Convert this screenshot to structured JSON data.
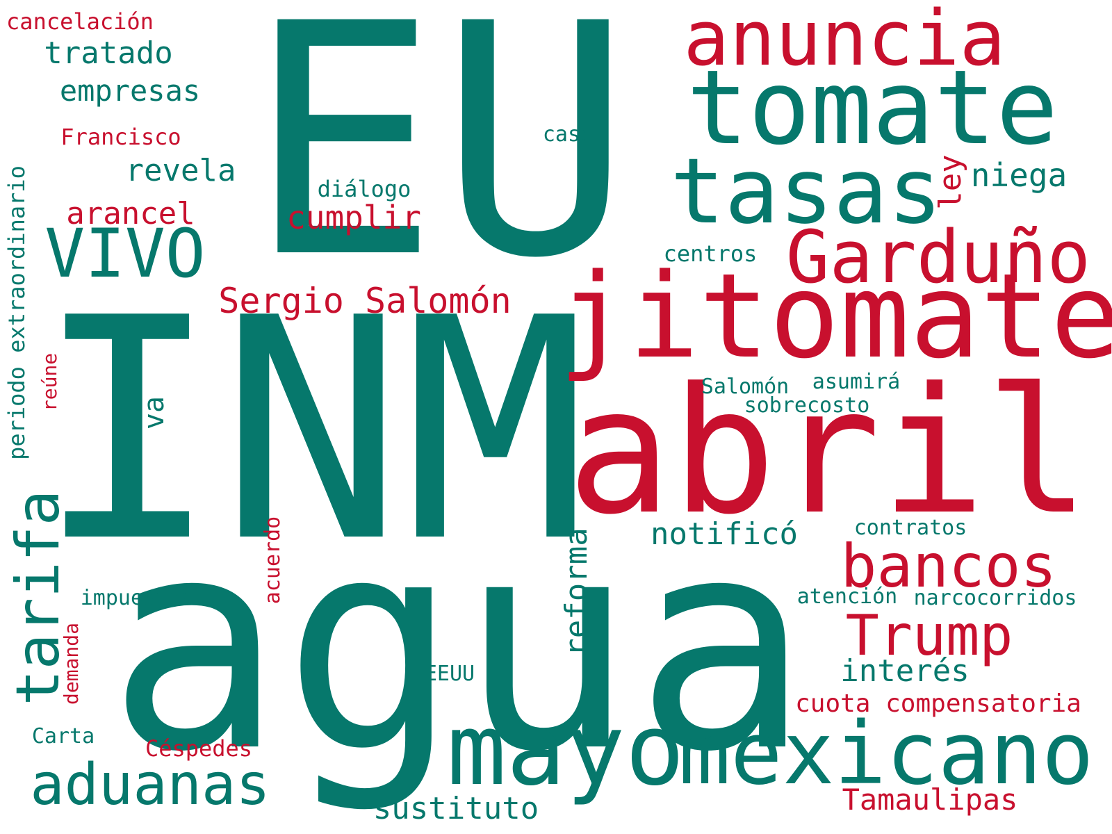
{
  "colors": {
    "green": "#06786c",
    "red": "#c8102e",
    "background": "#ffffff"
  },
  "words": {
    "eu": "EU",
    "inm": "INM",
    "agua": "agua",
    "abril": "abril",
    "jitomate": "jitomate",
    "tomate": "tomate",
    "anuncia": "anuncia",
    "tasas": "tasas",
    "garduno": "Garduño",
    "vivo": "VIVO",
    "mayo": "mayo",
    "mexicano": "mexicano",
    "aduanas": "aduanas",
    "tarifa": "tarifa",
    "bancos": "bancos",
    "trump": "Trump",
    "sergio_salomon": "Sergio Salomón",
    "cancelacion": "cancelación",
    "tratado": "tratado",
    "empresas": "empresas",
    "francisco": "Francisco",
    "caso": "caso",
    "revela": "revela",
    "dialogo": "diálogo",
    "arancel": "arancel",
    "cumplir": "cumplir",
    "ley": "ley",
    "niega": "niega",
    "centros": "centros",
    "periodo_extraordinario": "periodo extraordinario",
    "reune": "reúne",
    "va": "va",
    "salomon": "Salomón",
    "asumira": "asumirá",
    "sobrecosto": "sobrecosto",
    "notifico": "notificó",
    "contratos": "contratos",
    "reforma": "reforma",
    "acuerdo": "acuerdo",
    "impuestos": "impuestos",
    "atencion": "atención",
    "narcocorridos": "narcocorridos",
    "demanda": "demanda",
    "interes": "interés",
    "eeuu": "EEUU",
    "cuota_compensatoria": "cuota compensatoria",
    "carta": "Carta",
    "cespedes": "Céspedes",
    "sustituto": "sustituto",
    "tamaulipas": "Tamaulipas"
  }
}
